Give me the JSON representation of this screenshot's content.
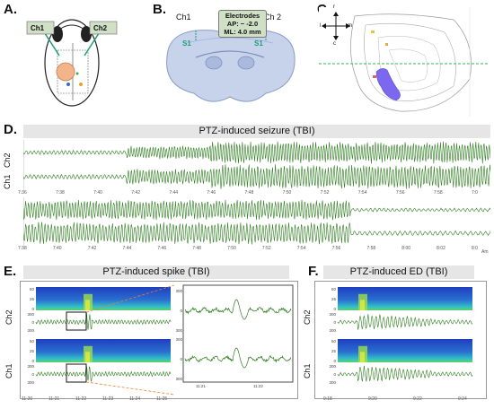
{
  "panels": {
    "a": {
      "label": "A.",
      "ch1": "Ch1",
      "ch2": "Ch2"
    },
    "b": {
      "label": "B.",
      "ch1": "Ch1",
      "ch2": "Ch 2",
      "box_title": "Electrodes",
      "ap": "AP: − -2.0",
      "ml": "ML: 4.0 mm",
      "s1": "S1"
    },
    "c": {
      "label": "C.",
      "r": "r",
      "l": "l",
      "m": "m",
      "c": "c"
    },
    "d": {
      "label": "D.",
      "title": "PTZ-induced seizure (TBI)",
      "ch1": "Ch1",
      "ch2": "Ch2",
      "ticks_row1": [
        "7:36",
        "7:38",
        "7:40",
        "7:42",
        "7:44",
        "7:46",
        "7:48",
        "7:50",
        "7:52",
        "7:54",
        "7:56",
        "7:58",
        "7:0"
      ],
      "ticks_row2": [
        "7:38",
        "7:40",
        "7:42",
        "7:44",
        "7:46",
        "7:48",
        "7:50",
        "7:52",
        "7:54",
        "7:56",
        "7:58",
        "8:00",
        "8:02",
        "8:0"
      ],
      "unit": "Am"
    },
    "e": {
      "label": "E.",
      "title": "PTZ-induced spike (TBI)",
      "ch1": "Ch1",
      "ch2": "Ch2",
      "ticks": [
        "11:20",
        "11:21",
        "11:22",
        "11:23",
        "11:24",
        "11:25"
      ],
      "zoom_ticks": [
        "11:21",
        "11:22"
      ],
      "zoom_y": [
        "300",
        "0",
        "-300"
      ],
      "spec_y": [
        "50",
        "25",
        "0"
      ],
      "trace_y": [
        "300",
        "0",
        "-300"
      ]
    },
    "f": {
      "label": "F.",
      "title": "PTZ-induced ED (TBI)",
      "ch1": "Ch1",
      "ch2": "Ch2",
      "ticks": [
        "9:18",
        "9:20",
        "9:22",
        "9:24"
      ],
      "spec_y": [
        "50",
        "25",
        "0"
      ],
      "trace_y": [
        "300",
        "0",
        "-300"
      ]
    }
  },
  "colors": {
    "trace": "#2e7d1f",
    "banner": "#e6e6e6",
    "zoom_line": "#f07d2a",
    "box": "#111111"
  }
}
